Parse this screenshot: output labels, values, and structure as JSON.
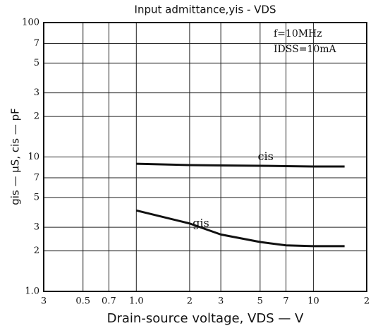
{
  "chart_data": {
    "type": "line",
    "title": "Input admittance,yis - VDS",
    "x_label": "Drain-source voltage, VDS — V",
    "y_label": "gis — μS, cis — pF",
    "annotations": [
      "f=10MHz",
      "IDSS=10mA"
    ],
    "log_x": true,
    "log_y": true,
    "grid": true,
    "xlim": [
      0.3,
      20
    ],
    "ylim": [
      1,
      100
    ],
    "xticks": [
      {
        "value": 0.3,
        "label": "3"
      },
      0.5,
      0.7,
      {
        "value": 1,
        "label": "1.0"
      },
      2,
      3,
      5,
      7,
      10,
      {
        "value": 20,
        "label": "2"
      }
    ],
    "yticks": [
      {
        "value": 1,
        "label": "1.0"
      },
      2,
      3,
      5,
      7,
      10,
      {
        "value": 20,
        "label": "2"
      },
      {
        "value": 30,
        "label": "3"
      },
      {
        "value": 50,
        "label": "5"
      },
      {
        "value": 70,
        "label": "7"
      },
      100
    ],
    "x": [
      1,
      2,
      3,
      5,
      7,
      10,
      15
    ],
    "series": [
      {
        "name": "cis",
        "color": "#111111",
        "values": [
          8.9,
          8.7,
          8.65,
          8.6,
          8.55,
          8.5,
          8.5
        ]
      },
      {
        "name": "gis",
        "color": "#111111",
        "values": [
          4.0,
          3.2,
          2.65,
          2.33,
          2.2,
          2.17,
          2.17
        ]
      }
    ]
  }
}
